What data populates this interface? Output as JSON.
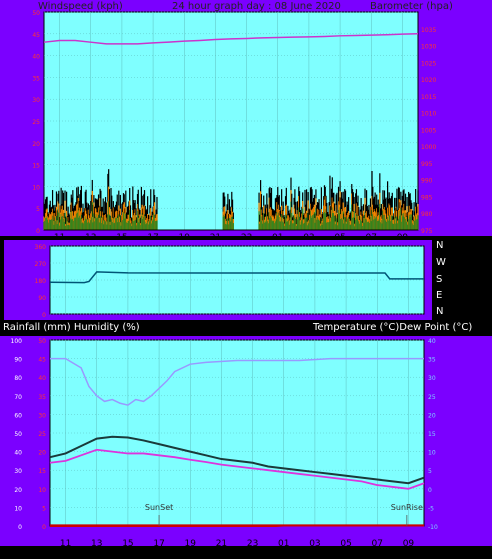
{
  "colors": {
    "frame": "#7b00ff",
    "plot_bg": "#7fffff",
    "grid": "#5fbfbf",
    "border": "#2a2a2a",
    "title_text": "#222222",
    "wind_max": "#000000",
    "wind_avg": "#228b22",
    "wind_gust": "#ff8c00",
    "barometer": "#cc33cc",
    "direction": "#005577",
    "temperature": "#1a3a3a",
    "dewpoint": "#dd33dd",
    "humidity": "#9999ff",
    "rain": "#cc0000",
    "red_tick": "#ff3333",
    "right_tick": "#7fd0ff"
  },
  "header": {
    "left": "Windspeed (kph)",
    "center": "24 hour graph day : 08 June 2020",
    "right": "Barometer (hpa)"
  },
  "direction_labels": [
    "N",
    "W",
    "S",
    "E",
    "N"
  ],
  "bottom_header": {
    "left": "Rainfall (mm)  Humidity (%)",
    "right": "Temperature (°C)Dew Point (°C)"
  },
  "x_ticks": [
    "11",
    "13",
    "15",
    "17",
    "19",
    "21",
    "23",
    "01",
    "03",
    "05",
    "07",
    "09"
  ],
  "chart_data": [
    {
      "type": "line",
      "title": "24 hour graph day : 08 June 2020",
      "ylabel": "Windspeed (kph)",
      "y2label": "Barometer (hpa)",
      "ylim": [
        0,
        50
      ],
      "y2lim": [
        975,
        1040
      ],
      "y_ticks": [
        0,
        5,
        10,
        15,
        20,
        25,
        30,
        35,
        40,
        45,
        50
      ],
      "y2_ticks": [
        975,
        980,
        985,
        990,
        995,
        1000,
        1005,
        1010,
        1015,
        1020,
        1025,
        1030,
        1035
      ],
      "x_range_hours": [
        10,
        34
      ],
      "series": [
        {
          "name": "Windspeed",
          "style": "wind",
          "segments": [
            [
              10.0,
              17.3
            ],
            [
              21.5,
              22.2
            ],
            [
              23.8,
              34.0
            ]
          ],
          "max": 15,
          "typical": 8
        },
        {
          "name": "Barometer",
          "axis": "y2",
          "x": [
            10,
            11,
            12,
            13,
            14,
            15,
            16,
            17,
            18,
            19,
            20,
            21,
            22,
            23,
            24,
            25,
            26,
            27,
            28,
            29,
            30,
            31,
            32,
            33,
            34
          ],
          "values": [
            1031.0,
            1031.5,
            1031.5,
            1031.0,
            1030.5,
            1030.5,
            1030.5,
            1030.8,
            1031.0,
            1031.3,
            1031.5,
            1031.8,
            1032.0,
            1032.1,
            1032.3,
            1032.4,
            1032.5,
            1032.6,
            1032.7,
            1032.9,
            1033.0,
            1033.1,
            1033.2,
            1033.4,
            1033.5
          ]
        }
      ]
    },
    {
      "type": "line",
      "ylabel": "Wind direction",
      "ylim": [
        0,
        360
      ],
      "y_ticks": [
        0,
        90,
        180,
        270,
        360
      ],
      "x_range_hours": [
        10,
        34
      ],
      "series": [
        {
          "name": "Direction",
          "x": [
            10,
            12.2,
            12.5,
            13.0,
            15,
            20,
            25,
            30,
            31.5,
            31.8,
            34
          ],
          "values": [
            168,
            166,
            172,
            223,
            218,
            217,
            217,
            217,
            217,
            186,
            186
          ]
        }
      ]
    },
    {
      "type": "line",
      "ylabel": "Rainfall (mm)  Humidity (%)",
      "y2label": "Temperature (°C)Dew Point (°C)",
      "ylim": [
        0,
        100
      ],
      "y2lim": [
        -10,
        40
      ],
      "y_ticks": [
        0,
        10,
        20,
        30,
        40,
        50,
        60,
        70,
        80,
        90,
        100
      ],
      "y_rain_ticks": [
        0,
        5,
        10,
        15,
        20,
        25,
        30,
        35,
        40,
        45,
        50
      ],
      "y2_ticks": [
        -10,
        -5,
        0,
        5,
        10,
        15,
        20,
        25,
        30,
        35,
        40
      ],
      "x_range_hours": [
        10,
        34
      ],
      "annotations": [
        {
          "label": "SunSet",
          "x": 17.0
        },
        {
          "label": "SunRise",
          "x": 32.9
        }
      ],
      "series": [
        {
          "name": "Humidity",
          "x": [
            10,
            11,
            12,
            12.5,
            13,
            13.5,
            14,
            14.5,
            15,
            15.5,
            16,
            16.5,
            17,
            17.5,
            18,
            19,
            20,
            22,
            24,
            26,
            28,
            30,
            32,
            34
          ],
          "values": [
            90,
            90,
            85,
            75,
            70,
            67,
            68,
            66,
            65,
            68,
            67,
            70,
            74,
            78,
            83,
            87,
            88,
            89,
            89,
            89,
            90,
            90,
            90,
            90
          ]
        },
        {
          "name": "Temperature",
          "axis": "y2",
          "x": [
            10,
            11,
            12,
            13,
            14,
            15,
            16,
            17,
            18,
            19,
            20,
            21,
            22,
            23,
            24,
            25,
            26,
            27,
            28,
            29,
            30,
            31,
            32,
            33,
            34
          ],
          "values": [
            8.5,
            9.5,
            11.5,
            13.5,
            14.0,
            13.8,
            13.0,
            12.0,
            11.0,
            10.0,
            9.0,
            8.0,
            7.5,
            7.0,
            6.0,
            5.5,
            5.0,
            4.5,
            4.0,
            3.5,
            3.0,
            2.5,
            2.0,
            1.5,
            3.0
          ]
        },
        {
          "name": "Dew Point",
          "axis": "y2",
          "x": [
            10,
            11,
            12,
            13,
            14,
            15,
            16,
            17,
            18,
            19,
            20,
            21,
            22,
            23,
            24,
            25,
            26,
            27,
            28,
            29,
            30,
            31,
            32,
            33,
            34
          ],
          "values": [
            7.0,
            7.5,
            9.0,
            10.5,
            10.0,
            9.5,
            9.5,
            9.0,
            8.5,
            7.8,
            7.2,
            6.5,
            6.0,
            5.5,
            5.0,
            4.5,
            4.0,
            3.5,
            3.0,
            2.5,
            2.0,
            1.0,
            0.5,
            0.0,
            1.5
          ]
        },
        {
          "name": "Rainfall",
          "x": [
            10,
            24.5,
            25,
            34
          ],
          "values": [
            0,
            0,
            0.3,
            0.3
          ]
        }
      ]
    }
  ]
}
